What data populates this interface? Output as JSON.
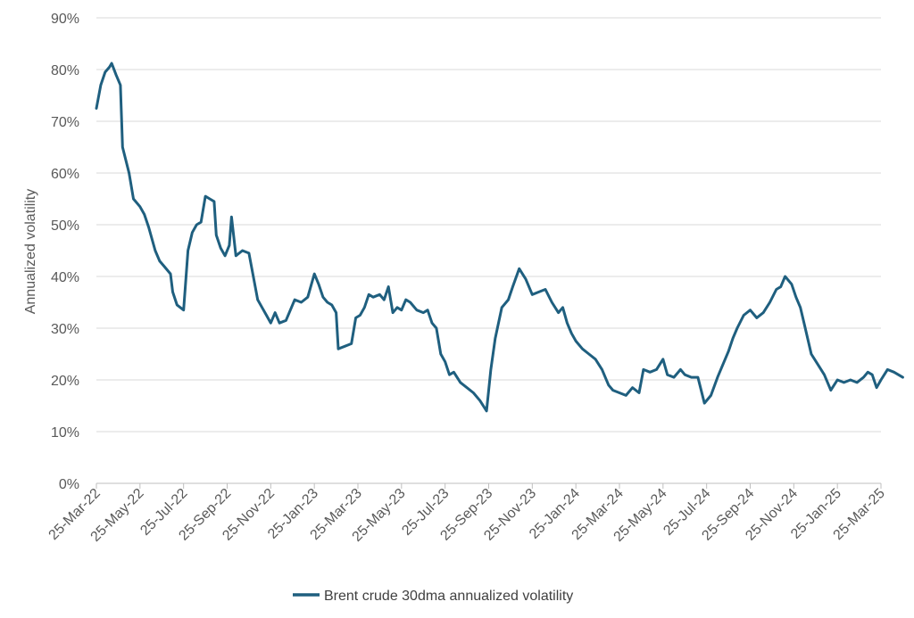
{
  "chart_data": {
    "type": "line",
    "title": "",
    "xlabel": "",
    "ylabel": "Annualized volatility",
    "ylim": [
      0,
      90
    ],
    "y_ticks": [
      "0%",
      "10%",
      "20%",
      "30%",
      "40%",
      "50%",
      "60%",
      "70%",
      "80%",
      "90%"
    ],
    "x_ticks": [
      "25-Mar-22",
      "25-May-22",
      "25-Jul-22",
      "25-Sep-22",
      "25-Nov-22",
      "25-Jan-23",
      "25-Mar-23",
      "25-May-23",
      "25-Jul-23",
      "25-Sep-23",
      "25-Nov-23",
      "25-Jan-24",
      "25-Mar-24",
      "25-May-24",
      "25-Jul-24",
      "25-Sep-24",
      "25-Nov-24",
      "25-Jan-25",
      "25-Mar-25"
    ],
    "grid": true,
    "legend_position": "bottom",
    "series": [
      {
        "name": "Brent crude 30dma annualized volatility",
        "color": "#1f5f7f",
        "points": [
          [
            0,
            72.5
          ],
          [
            0.1,
            77
          ],
          [
            0.2,
            79.5
          ],
          [
            0.3,
            80.5
          ],
          [
            0.35,
            81.2
          ],
          [
            0.45,
            79
          ],
          [
            0.55,
            77
          ],
          [
            0.6,
            65
          ],
          [
            0.75,
            60
          ],
          [
            0.85,
            55
          ],
          [
            1.0,
            53.5
          ],
          [
            1.1,
            52
          ],
          [
            1.2,
            49.5
          ],
          [
            1.35,
            45
          ],
          [
            1.45,
            43
          ],
          [
            1.55,
            42
          ],
          [
            1.7,
            40.5
          ],
          [
            1.75,
            37
          ],
          [
            1.85,
            34.5
          ],
          [
            2.0,
            33.5
          ],
          [
            2.1,
            45
          ],
          [
            2.2,
            48.5
          ],
          [
            2.3,
            50
          ],
          [
            2.4,
            50.5
          ],
          [
            2.5,
            55.5
          ],
          [
            2.6,
            55
          ],
          [
            2.7,
            54.5
          ],
          [
            2.75,
            48
          ],
          [
            2.85,
            45.5
          ],
          [
            2.95,
            44
          ],
          [
            3.05,
            46
          ],
          [
            3.1,
            51.5
          ],
          [
            3.2,
            44
          ],
          [
            3.35,
            45
          ],
          [
            3.5,
            44.5
          ],
          [
            3.6,
            40
          ],
          [
            3.7,
            35.5
          ],
          [
            3.8,
            34
          ],
          [
            3.9,
            32.5
          ],
          [
            4.0,
            31
          ],
          [
            4.1,
            33
          ],
          [
            4.2,
            31
          ],
          [
            4.35,
            31.5
          ],
          [
            4.45,
            33.5
          ],
          [
            4.55,
            35.5
          ],
          [
            4.7,
            35
          ],
          [
            4.85,
            36
          ],
          [
            5.0,
            40.5
          ],
          [
            5.1,
            38.5
          ],
          [
            5.2,
            36
          ],
          [
            5.3,
            35
          ],
          [
            5.4,
            34.5
          ],
          [
            5.5,
            33
          ],
          [
            5.55,
            26
          ],
          [
            5.7,
            26.5
          ],
          [
            5.85,
            27
          ],
          [
            5.95,
            32
          ],
          [
            6.05,
            32.5
          ],
          [
            6.15,
            34
          ],
          [
            6.25,
            36.5
          ],
          [
            6.35,
            36
          ],
          [
            6.5,
            36.5
          ],
          [
            6.6,
            35.5
          ],
          [
            6.7,
            38
          ],
          [
            6.8,
            33
          ],
          [
            6.9,
            34
          ],
          [
            7.0,
            33.5
          ],
          [
            7.1,
            35.5
          ],
          [
            7.2,
            35
          ],
          [
            7.35,
            33.5
          ],
          [
            7.5,
            33
          ],
          [
            7.6,
            33.5
          ],
          [
            7.7,
            31
          ],
          [
            7.8,
            30
          ],
          [
            7.9,
            25
          ],
          [
            8.0,
            23.5
          ],
          [
            8.1,
            21
          ],
          [
            8.2,
            21.5
          ],
          [
            8.35,
            19.5
          ],
          [
            8.5,
            18.5
          ],
          [
            8.65,
            17.5
          ],
          [
            8.8,
            16
          ],
          [
            8.95,
            14
          ],
          [
            9.05,
            22
          ],
          [
            9.15,
            28
          ],
          [
            9.3,
            34
          ],
          [
            9.45,
            35.5
          ],
          [
            9.55,
            38
          ],
          [
            9.7,
            41.5
          ],
          [
            9.85,
            39.5
          ],
          [
            10.0,
            36.5
          ],
          [
            10.15,
            37
          ],
          [
            10.3,
            37.5
          ],
          [
            10.45,
            35
          ],
          [
            10.6,
            33
          ],
          [
            10.7,
            34
          ],
          [
            10.8,
            31
          ],
          [
            10.9,
            29
          ],
          [
            11.0,
            27.5
          ],
          [
            11.15,
            26
          ],
          [
            11.3,
            25
          ],
          [
            11.45,
            24
          ],
          [
            11.6,
            22
          ],
          [
            11.75,
            19
          ],
          [
            11.85,
            18
          ],
          [
            12.0,
            17.5
          ],
          [
            12.15,
            17
          ],
          [
            12.3,
            18.5
          ],
          [
            12.45,
            17.5
          ],
          [
            12.55,
            22
          ],
          [
            12.7,
            21.5
          ],
          [
            12.85,
            22
          ],
          [
            13.0,
            24
          ],
          [
            13.1,
            21
          ],
          [
            13.25,
            20.5
          ],
          [
            13.4,
            22
          ],
          [
            13.5,
            21
          ],
          [
            13.65,
            20.5
          ],
          [
            13.8,
            20.5
          ],
          [
            13.95,
            15.5
          ],
          [
            14.1,
            17
          ],
          [
            14.25,
            20.5
          ],
          [
            14.4,
            23.5
          ],
          [
            14.5,
            25.5
          ],
          [
            14.6,
            28
          ],
          [
            14.7,
            30
          ],
          [
            14.85,
            32.5
          ],
          [
            15.0,
            33.5
          ],
          [
            15.15,
            32
          ],
          [
            15.3,
            33
          ],
          [
            15.45,
            35
          ],
          [
            15.6,
            37.5
          ],
          [
            15.7,
            38
          ],
          [
            15.8,
            40
          ],
          [
            15.95,
            38.5
          ],
          [
            16.05,
            36
          ],
          [
            16.15,
            34
          ],
          [
            16.25,
            30.5
          ],
          [
            16.4,
            25
          ],
          [
            16.55,
            23
          ],
          [
            16.7,
            21
          ],
          [
            16.85,
            18
          ],
          [
            17.0,
            20
          ],
          [
            17.15,
            19.5
          ],
          [
            17.3,
            20
          ],
          [
            17.45,
            19.5
          ],
          [
            17.6,
            20.5
          ],
          [
            17.7,
            21.5
          ],
          [
            17.8,
            21
          ],
          [
            17.9,
            18.5
          ],
          [
            18.0,
            20
          ],
          [
            18.15,
            22
          ],
          [
            18.3,
            21.5
          ],
          [
            18.4,
            21
          ],
          [
            18.5,
            20.5
          ]
        ]
      }
    ]
  }
}
